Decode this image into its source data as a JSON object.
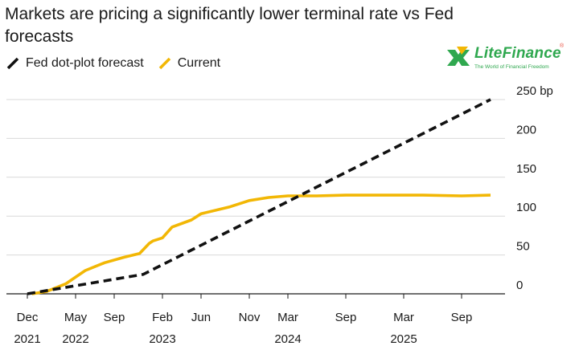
{
  "header": {
    "title": "Markets are pricing a significantly lower terminal rate vs Fed forecasts"
  },
  "logo": {
    "name": "LiteFinance",
    "tagline": "The World of Financial Freedom",
    "registered": "®",
    "colors": {
      "green": "#2fa84f",
      "yellow": "#f2b705"
    }
  },
  "legend": {
    "items": [
      {
        "label": "Fed dot-plot forecast",
        "color": "#111111",
        "style": "dashed"
      },
      {
        "label": "Current",
        "color": "#f2b705",
        "style": "solid"
      }
    ]
  },
  "chart_data": {
    "type": "line",
    "title": "Markets are pricing a significantly lower terminal rate vs Fed forecasts",
    "xlabel": "",
    "ylabel": "",
    "x_range": [
      "2021-12",
      "2026-02"
    ],
    "ylim": [
      0,
      250
    ],
    "y_ticks": [
      0,
      50,
      100,
      150,
      200,
      250
    ],
    "y_tick_labels": [
      "0",
      "50",
      "100",
      "150",
      "200",
      "250 bp"
    ],
    "y_axis_position": "right",
    "grid": "horizontal",
    "x_ticks": [
      {
        "date": "2021-12",
        "label": "Dec",
        "year": "2021"
      },
      {
        "date": "2022-05",
        "label": "May",
        "year": "2022"
      },
      {
        "date": "2022-09",
        "label": "Sep",
        "year": ""
      },
      {
        "date": "2023-02",
        "label": "Feb",
        "year": "2023"
      },
      {
        "date": "2023-06",
        "label": "Jun",
        "year": ""
      },
      {
        "date": "2023-11",
        "label": "Nov",
        "year": ""
      },
      {
        "date": "2024-03",
        "label": "Mar",
        "year": "2024"
      },
      {
        "date": "2024-09",
        "label": "Sep",
        "year": ""
      },
      {
        "date": "2025-03",
        "label": "Mar",
        "year": "2025"
      },
      {
        "date": "2025-09",
        "label": "Sep",
        "year": ""
      }
    ],
    "series": [
      {
        "name": "Fed dot-plot forecast",
        "color": "#111111",
        "style": "dashed",
        "points": [
          {
            "x": "2021-12",
            "y": 0
          },
          {
            "x": "2022-12",
            "y": 25
          },
          {
            "x": "2025-12",
            "y": 250
          }
        ]
      },
      {
        "name": "Current",
        "color": "#f2b705",
        "style": "solid",
        "points": [
          {
            "x": "2021-12-15",
            "y": 0
          },
          {
            "x": "2022-02",
            "y": 3
          },
          {
            "x": "2022-04",
            "y": 13
          },
          {
            "x": "2022-06",
            "y": 30
          },
          {
            "x": "2022-08",
            "y": 40
          },
          {
            "x": "2022-10",
            "y": 47
          },
          {
            "x": "2022-11-20",
            "y": 52
          },
          {
            "x": "2022-12-20",
            "y": 65
          },
          {
            "x": "2023-01",
            "y": 68
          },
          {
            "x": "2023-02",
            "y": 72
          },
          {
            "x": "2023-03",
            "y": 86
          },
          {
            "x": "2023-05",
            "y": 95
          },
          {
            "x": "2023-06",
            "y": 103
          },
          {
            "x": "2023-09",
            "y": 112
          },
          {
            "x": "2023-11",
            "y": 120
          },
          {
            "x": "2024-01",
            "y": 124
          },
          {
            "x": "2024-03",
            "y": 126
          },
          {
            "x": "2024-06",
            "y": 126
          },
          {
            "x": "2024-09",
            "y": 127
          },
          {
            "x": "2025-01",
            "y": 127
          },
          {
            "x": "2025-05",
            "y": 127
          },
          {
            "x": "2025-09",
            "y": 126
          },
          {
            "x": "2025-12",
            "y": 127
          }
        ]
      }
    ]
  }
}
